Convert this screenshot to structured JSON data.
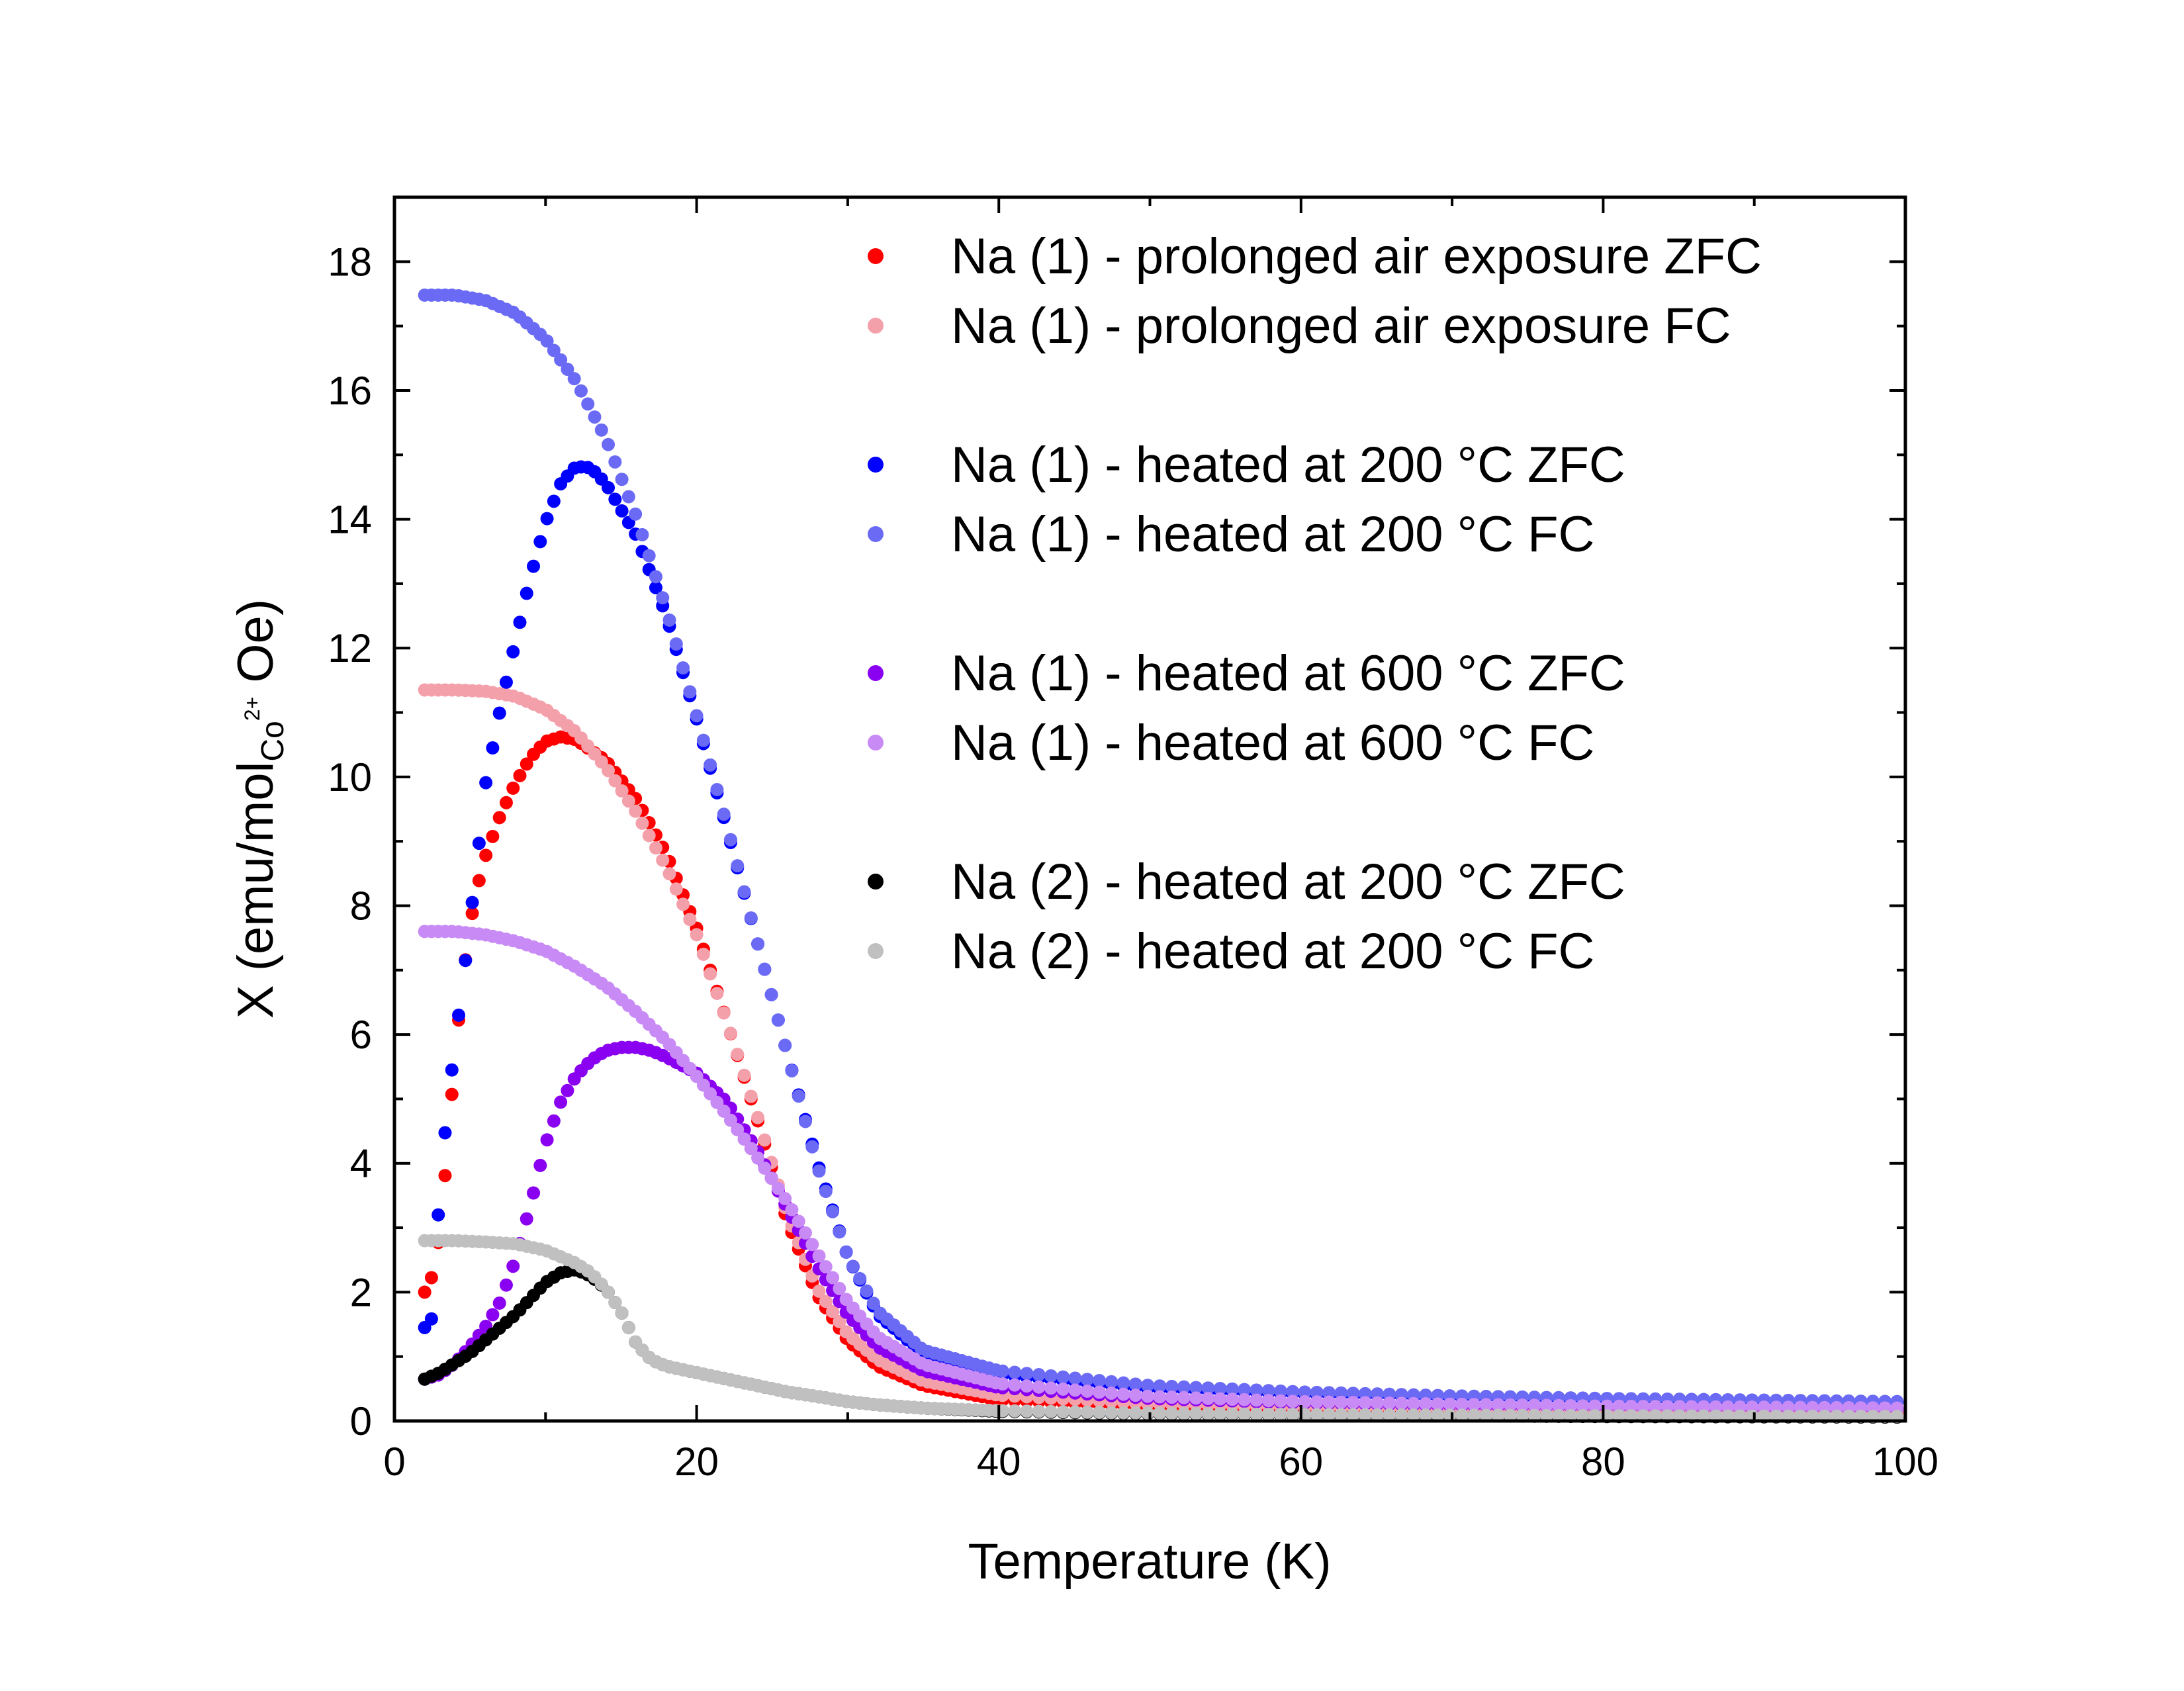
{
  "chart_data": {
    "type": "scatter",
    "xlabel": "Temperature (K)",
    "ylabel": {
      "prefix": "Χ (emu/mol",
      "subscript": "Co",
      "superscript": "2+",
      "suffix": " Oe)"
    },
    "xlim": [
      0,
      100
    ],
    "ylim": [
      0,
      19
    ],
    "xticks": [
      0,
      20,
      40,
      60,
      80,
      100
    ],
    "yticks": [
      0,
      2,
      4,
      6,
      8,
      10,
      12,
      14,
      16,
      18
    ],
    "grid": false,
    "legend_position": "top-right",
    "series": [
      {
        "name": "Na (1) - prolonged air exposure ZFC",
        "color": "#ff0000",
        "points": [
          [
            2.0,
            2.0
          ],
          [
            2.5,
            2.25
          ],
          [
            3,
            2.9
          ],
          [
            3.5,
            4.2
          ],
          [
            4,
            5.65
          ],
          [
            4.5,
            6.8
          ],
          [
            5,
            7.7
          ],
          [
            5.5,
            8.3
          ],
          [
            6,
            8.75
          ],
          [
            7,
            9.4
          ],
          [
            8,
            9.9
          ],
          [
            9,
            10.3
          ],
          [
            10,
            10.55
          ],
          [
            11,
            10.62
          ],
          [
            12,
            10.58
          ],
          [
            14,
            10.25
          ],
          [
            16,
            9.65
          ],
          [
            18,
            8.8
          ],
          [
            20,
            7.65
          ],
          [
            22,
            6.2
          ],
          [
            24,
            4.7
          ],
          [
            26,
            3.1
          ],
          [
            28,
            1.95
          ],
          [
            30,
            1.25
          ],
          [
            32,
            0.85
          ],
          [
            35,
            0.55
          ],
          [
            40,
            0.33
          ],
          [
            50,
            0.22
          ],
          [
            60,
            0.18
          ],
          [
            70,
            0.15
          ],
          [
            80,
            0.14
          ],
          [
            100,
            0.12
          ]
        ]
      },
      {
        "name": "Na (1) - prolonged air exposure FC",
        "color": "#f4a0aa",
        "points": [
          [
            2,
            11.35
          ],
          [
            4,
            11.35
          ],
          [
            6,
            11.33
          ],
          [
            8,
            11.25
          ],
          [
            10,
            11.05
          ],
          [
            12,
            10.7
          ],
          [
            14,
            10.15
          ],
          [
            16,
            9.45
          ],
          [
            18,
            8.6
          ],
          [
            20,
            7.55
          ],
          [
            22,
            6.2
          ],
          [
            24,
            4.75
          ],
          [
            26,
            3.2
          ],
          [
            28,
            2.05
          ],
          [
            30,
            1.35
          ],
          [
            32,
            0.95
          ],
          [
            35,
            0.62
          ],
          [
            40,
            0.4
          ],
          [
            50,
            0.27
          ],
          [
            60,
            0.22
          ],
          [
            70,
            0.19
          ],
          [
            80,
            0.17
          ],
          [
            100,
            0.15
          ]
        ]
      },
      {
        "name": "Na (1) - heated at 200 °C ZFC",
        "color": "#0000ff",
        "points": [
          [
            2.0,
            1.45
          ],
          [
            2.5,
            1.6
          ],
          [
            3,
            3.6
          ],
          [
            3.5,
            4.85
          ],
          [
            4,
            5.85
          ],
          [
            4.5,
            6.75
          ],
          [
            5,
            7.75
          ],
          [
            5.5,
            8.75
          ],
          [
            6,
            9.85
          ],
          [
            7,
            11.05
          ],
          [
            8,
            12.1
          ],
          [
            9,
            13.1
          ],
          [
            10,
            13.95
          ],
          [
            11,
            14.55
          ],
          [
            12,
            14.82
          ],
          [
            13,
            14.8
          ],
          [
            14,
            14.55
          ],
          [
            16,
            13.75
          ],
          [
            18,
            12.5
          ],
          [
            20,
            10.9
          ],
          [
            22,
            9.2
          ],
          [
            24,
            7.45
          ],
          [
            26,
            5.7
          ],
          [
            28,
            4.0
          ],
          [
            30,
            2.55
          ],
          [
            32,
            1.65
          ],
          [
            35,
            1.05
          ],
          [
            40,
            0.72
          ],
          [
            50,
            0.5
          ],
          [
            60,
            0.42
          ],
          [
            70,
            0.37
          ],
          [
            80,
            0.33
          ],
          [
            100,
            0.29
          ]
        ]
      },
      {
        "name": "Na (1) - heated at 200 °C FC",
        "color": "#6a6af5",
        "points": [
          [
            2,
            17.48
          ],
          [
            4,
            17.48
          ],
          [
            6,
            17.4
          ],
          [
            8,
            17.2
          ],
          [
            10,
            16.8
          ],
          [
            12,
            16.15
          ],
          [
            14,
            15.25
          ],
          [
            16,
            14.05
          ],
          [
            18,
            12.6
          ],
          [
            20,
            10.95
          ],
          [
            22,
            9.25
          ],
          [
            24,
            7.45
          ],
          [
            26,
            5.7
          ],
          [
            28,
            3.95
          ],
          [
            30,
            2.55
          ],
          [
            32,
            1.7
          ],
          [
            35,
            1.1
          ],
          [
            40,
            0.78
          ],
          [
            50,
            0.55
          ],
          [
            60,
            0.45
          ],
          [
            70,
            0.39
          ],
          [
            80,
            0.35
          ],
          [
            100,
            0.3
          ]
        ]
      },
      {
        "name": "Na (1) - heated at 600 °C ZFC",
        "color": "#8a00f0",
        "points": [
          [
            2,
            0.65
          ],
          [
            3,
            0.72
          ],
          [
            4,
            0.9
          ],
          [
            5,
            1.15
          ],
          [
            6,
            1.45
          ],
          [
            7,
            1.85
          ],
          [
            8,
            2.5
          ],
          [
            9,
            3.35
          ],
          [
            10,
            4.3
          ],
          [
            11,
            4.95
          ],
          [
            12,
            5.35
          ],
          [
            13,
            5.6
          ],
          [
            14,
            5.75
          ],
          [
            15,
            5.8
          ],
          [
            16,
            5.8
          ],
          [
            17,
            5.75
          ],
          [
            18,
            5.65
          ],
          [
            20,
            5.4
          ],
          [
            22,
            4.95
          ],
          [
            24,
            4.2
          ],
          [
            26,
            3.3
          ],
          [
            28,
            2.4
          ],
          [
            30,
            1.65
          ],
          [
            32,
            1.15
          ],
          [
            35,
            0.78
          ],
          [
            40,
            0.52
          ],
          [
            50,
            0.35
          ],
          [
            60,
            0.28
          ],
          [
            70,
            0.24
          ],
          [
            80,
            0.22
          ],
          [
            100,
            0.19
          ]
        ]
      },
      {
        "name": "Na (1) - heated at 600 °C FC",
        "color": "#c88af5",
        "points": [
          [
            2,
            7.6
          ],
          [
            4,
            7.6
          ],
          [
            6,
            7.55
          ],
          [
            8,
            7.45
          ],
          [
            10,
            7.3
          ],
          [
            12,
            7.05
          ],
          [
            14,
            6.75
          ],
          [
            16,
            6.35
          ],
          [
            18,
            5.9
          ],
          [
            20,
            5.35
          ],
          [
            22,
            4.75
          ],
          [
            24,
            4.1
          ],
          [
            26,
            3.4
          ],
          [
            28,
            2.6
          ],
          [
            30,
            1.85
          ],
          [
            32,
            1.3
          ],
          [
            35,
            0.88
          ],
          [
            40,
            0.58
          ],
          [
            50,
            0.38
          ],
          [
            60,
            0.3
          ],
          [
            70,
            0.26
          ],
          [
            80,
            0.23
          ],
          [
            100,
            0.2
          ]
        ]
      },
      {
        "name": "Na (2) - heated at 200 °C ZFC",
        "color": "#000000",
        "points": [
          [
            2,
            0.65
          ],
          [
            3,
            0.75
          ],
          [
            4,
            0.9
          ],
          [
            5,
            1.05
          ],
          [
            6,
            1.25
          ],
          [
            7,
            1.45
          ],
          [
            8,
            1.65
          ],
          [
            9,
            1.9
          ],
          [
            10,
            2.15
          ],
          [
            11,
            2.3
          ],
          [
            12,
            2.35
          ],
          [
            13,
            2.25
          ],
          [
            14,
            2.05
          ],
          [
            15,
            1.7
          ],
          [
            16,
            1.2
          ],
          [
            17,
            0.95
          ],
          [
            18,
            0.85
          ],
          [
            20,
            0.75
          ],
          [
            22,
            0.65
          ],
          [
            24,
            0.55
          ],
          [
            26,
            0.45
          ],
          [
            28,
            0.38
          ],
          [
            30,
            0.3
          ],
          [
            32,
            0.25
          ],
          [
            35,
            0.2
          ],
          [
            40,
            0.15
          ],
          [
            50,
            0.11
          ],
          [
            60,
            0.09
          ],
          [
            70,
            0.08
          ],
          [
            80,
            0.07
          ],
          [
            100,
            0.06
          ]
        ]
      },
      {
        "name": "Na (2) - heated at 200 °C FC",
        "color": "#c0c0c0",
        "points": [
          [
            2,
            2.8
          ],
          [
            4,
            2.8
          ],
          [
            6,
            2.78
          ],
          [
            8,
            2.75
          ],
          [
            10,
            2.65
          ],
          [
            11,
            2.55
          ],
          [
            12,
            2.45
          ],
          [
            13,
            2.3
          ],
          [
            14,
            2.05
          ],
          [
            15,
            1.7
          ],
          [
            16,
            1.2
          ],
          [
            17,
            0.95
          ],
          [
            18,
            0.85
          ],
          [
            20,
            0.75
          ],
          [
            22,
            0.65
          ],
          [
            24,
            0.55
          ],
          [
            26,
            0.45
          ],
          [
            28,
            0.38
          ],
          [
            30,
            0.3
          ],
          [
            32,
            0.25
          ],
          [
            35,
            0.2
          ],
          [
            40,
            0.16
          ],
          [
            50,
            0.12
          ],
          [
            60,
            0.1
          ],
          [
            70,
            0.09
          ],
          [
            80,
            0.08
          ],
          [
            100,
            0.07
          ]
        ]
      }
    ]
  }
}
